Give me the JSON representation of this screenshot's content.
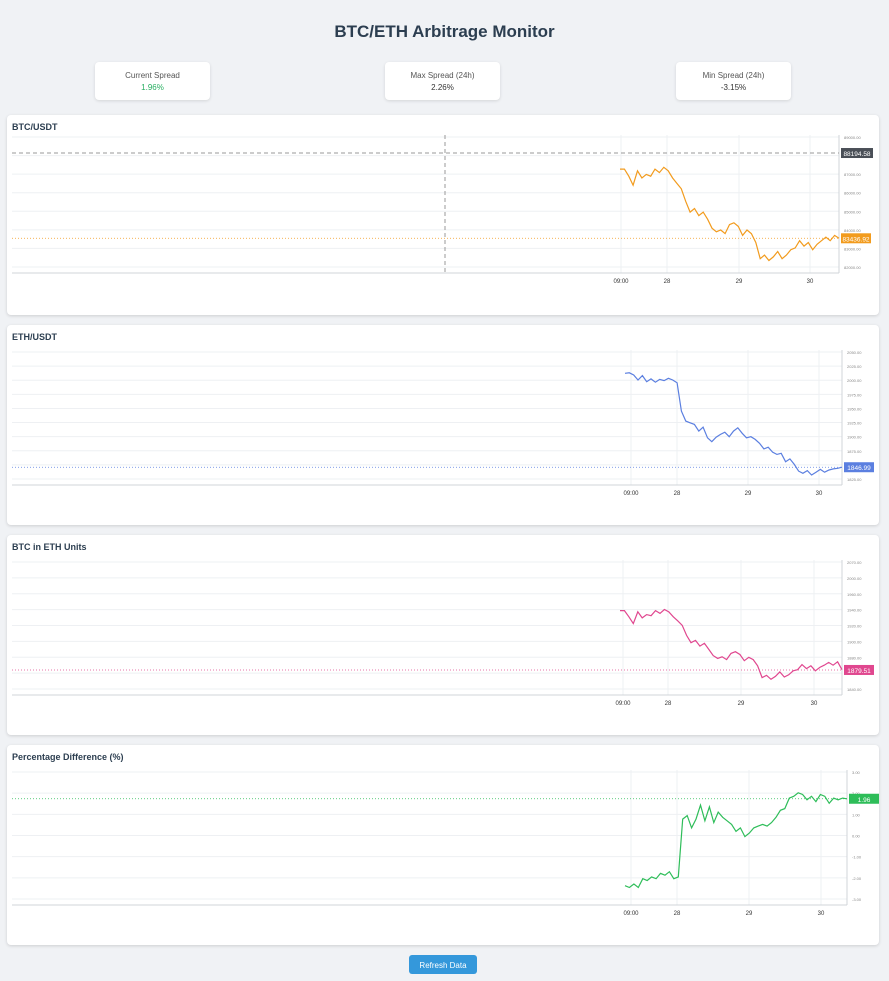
{
  "page": {
    "title": "BTC/ETH Arbitrage Monitor"
  },
  "stats": [
    {
      "label": "Current Spread",
      "value": "1.96%"
    },
    {
      "label": "Max Spread (24h)",
      "value": "2.26%"
    },
    {
      "label": "Min Spread (24h)",
      "value": "-3.15%"
    }
  ],
  "refresh_label": "Refresh Data",
  "chart_data": [
    {
      "type": "line",
      "title": "BTC/USDT",
      "color": "#f29b1d",
      "x_ticks": [
        "09:00",
        "28",
        "29",
        "30"
      ],
      "y_ticks": [
        "89000.00",
        "88000.00",
        "87000.00",
        "86000.00",
        "85000.00",
        "84000.00",
        "83000.00",
        "82000.00"
      ],
      "ylim": [
        81500,
        89200
      ],
      "current_label": "83436.92",
      "current_value": 83436.92,
      "crosshair_label": "88194.58",
      "crosshair_value": 88194.58,
      "x": [
        0,
        1,
        2,
        3,
        4,
        5,
        6,
        7,
        8,
        9,
        10,
        11,
        12,
        13,
        14,
        15,
        16,
        17,
        18,
        19,
        20,
        21,
        22,
        23,
        24,
        25,
        26,
        27,
        28,
        29,
        30,
        31,
        32,
        33,
        34,
        35,
        36,
        37,
        38,
        39,
        40,
        41,
        42,
        43,
        44,
        45,
        46,
        47,
        48,
        49,
        50
      ],
      "values": [
        87300,
        87300,
        86900,
        86400,
        87200,
        86800,
        87000,
        86900,
        87300,
        87100,
        87400,
        87200,
        86800,
        86500,
        86200,
        85500,
        84900,
        85100,
        84700,
        84900,
        84500,
        84000,
        83800,
        83900,
        83700,
        84200,
        84300,
        84100,
        83600,
        83900,
        83700,
        83200,
        82300,
        82500,
        82200,
        82400,
        82700,
        82300,
        82500,
        82800,
        82900,
        83300,
        83000,
        83200,
        82800,
        83100,
        83300,
        83500,
        83300,
        83600,
        83437
      ]
    },
    {
      "type": "line",
      "title": "ETH/USDT",
      "color": "#5b7fe0",
      "x_ticks": [
        "09:00",
        "28",
        "29",
        "30"
      ],
      "y_ticks": [
        "2050.00",
        "2025.00",
        "2000.00",
        "1975.00",
        "1950.00",
        "1925.00",
        "1900.00",
        "1875.00",
        "1850.00",
        "1825.00"
      ],
      "ylim": [
        1815,
        2058
      ],
      "current_label": "1846.99",
      "current_value": 1846.99,
      "x": [
        0,
        1,
        2,
        3,
        4,
        5,
        6,
        7,
        8,
        9,
        10,
        11,
        12,
        13,
        14,
        15,
        16,
        17,
        18,
        19,
        20,
        21,
        22,
        23,
        24,
        25,
        26,
        27,
        28,
        29,
        30,
        31,
        32,
        33,
        34,
        35,
        36,
        37,
        38,
        39,
        40,
        41,
        42,
        43,
        44,
        45,
        46,
        47,
        48,
        49,
        50
      ],
      "values": [
        2016,
        2017,
        2013,
        2004,
        2012,
        2001,
        2006,
        2000,
        2005,
        2003,
        2007,
        2004,
        1999,
        1948,
        1930,
        1927,
        1924,
        1912,
        1919,
        1900,
        1893,
        1901,
        1906,
        1910,
        1902,
        1912,
        1918,
        1908,
        1900,
        1902,
        1897,
        1890,
        1880,
        1883,
        1874,
        1870,
        1872,
        1857,
        1862,
        1852,
        1840,
        1836,
        1841,
        1833,
        1838,
        1843,
        1838,
        1842,
        1844,
        1845,
        1847
      ]
    },
    {
      "type": "line",
      "title": "BTC in ETH Units",
      "color": "#e0478f",
      "x_ticks": [
        "09:00",
        "28",
        "29",
        "30"
      ],
      "y_ticks": [
        "2070.00",
        "2000.00",
        "1960.00",
        "1940.00",
        "1920.00",
        "1900.00",
        "1880.00",
        "1860.00",
        "1840.00"
      ],
      "ylim": [
        1835,
        2075
      ],
      "current_label": "1879.51",
      "current_value": 1879.51,
      "x": [
        0,
        1,
        2,
        3,
        4,
        5,
        6,
        7,
        8,
        9,
        10,
        11,
        12,
        13,
        14,
        15,
        16,
        17,
        18,
        19,
        20,
        21,
        22,
        23,
        24,
        25,
        26,
        27,
        28,
        29,
        30,
        31,
        32,
        33,
        34,
        35,
        36,
        37,
        38,
        39,
        40,
        41,
        42,
        43,
        44,
        45,
        46,
        47,
        48,
        49,
        50
      ],
      "values": [
        1985,
        1985,
        1974,
        1962,
        1983,
        1972,
        1978,
        1976,
        1985,
        1980,
        1987,
        1983,
        1974,
        1967,
        1959,
        1941,
        1928,
        1932,
        1922,
        1927,
        1916,
        1905,
        1900,
        1903,
        1898,
        1909,
        1912,
        1907,
        1896,
        1902,
        1898,
        1887,
        1866,
        1870,
        1863,
        1868,
        1876,
        1867,
        1871,
        1878,
        1880,
        1889,
        1882,
        1887,
        1878,
        1884,
        1888,
        1893,
        1888,
        1894,
        1880
      ]
    },
    {
      "type": "line",
      "title": "Percentage Difference (%)",
      "color": "#2ebd59",
      "x_ticks": [
        "09:00",
        "28",
        "29",
        "30"
      ],
      "y_ticks": [
        "3.00",
        "2.00",
        "1.00",
        "0.00",
        "-1.00",
        "-2.00",
        "-3.00"
      ],
      "ylim": [
        -4.1,
        3.6
      ],
      "current_label": "1.96",
      "current_value": 1.96,
      "x": [
        0,
        1,
        2,
        3,
        4,
        5,
        6,
        7,
        8,
        9,
        10,
        11,
        12,
        13,
        14,
        15,
        16,
        17,
        18,
        19,
        20,
        21,
        22,
        23,
        24,
        25,
        26,
        27,
        28,
        29,
        30,
        31,
        32,
        33,
        34,
        35,
        36,
        37,
        38,
        39,
        40,
        41,
        42,
        43,
        44,
        45,
        46,
        47,
        48,
        49,
        50
      ],
      "values": [
        -3.0,
        -3.1,
        -2.9,
        -3.1,
        -2.6,
        -2.7,
        -2.5,
        -2.6,
        -2.3,
        -2.4,
        -2.2,
        -2.6,
        -2.5,
        0.8,
        1.0,
        0.3,
        0.8,
        1.6,
        0.7,
        1.5,
        0.6,
        1.2,
        0.9,
        0.7,
        0.5,
        0.1,
        0.3,
        -0.2,
        0.0,
        0.3,
        0.4,
        0.5,
        0.4,
        0.6,
        0.9,
        1.3,
        1.4,
        2.0,
        2.1,
        2.3,
        2.2,
        1.9,
        2.1,
        1.8,
        2.2,
        2.1,
        1.7,
        2.0,
        1.9,
        2.0,
        1.96
      ]
    }
  ]
}
